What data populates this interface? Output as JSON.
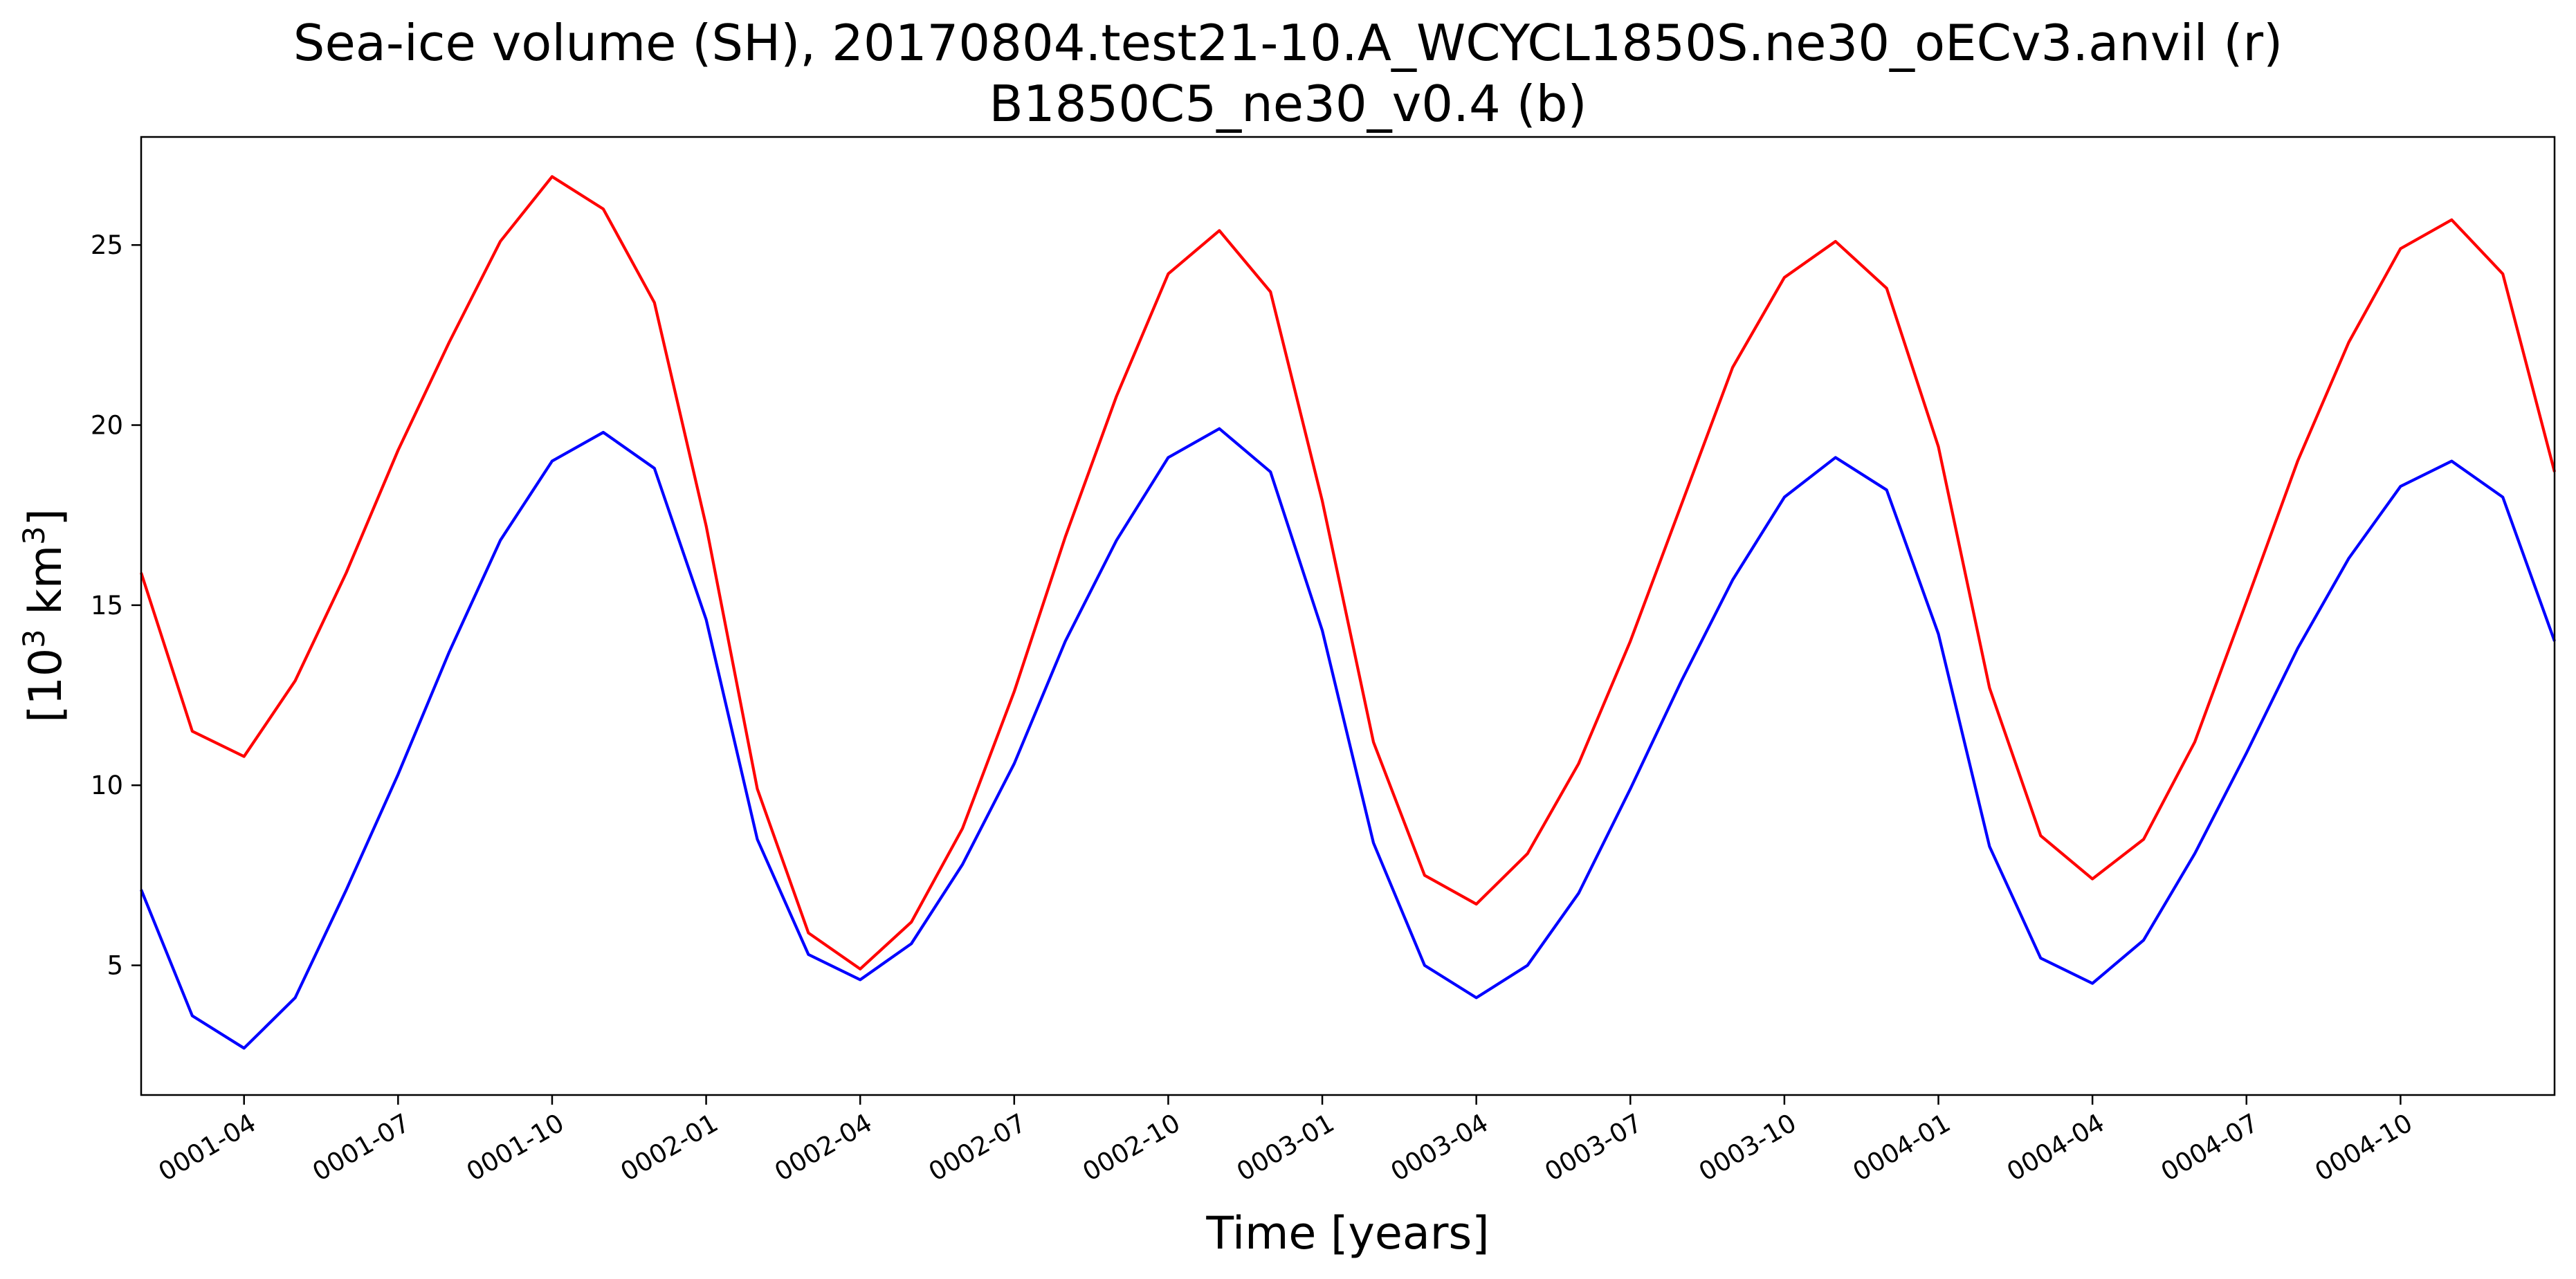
{
  "chart_data": {
    "type": "line",
    "title_line1": "Sea-ice volume (SH), 20170804.test21-10.A_WCYCL1850S.ne30_oECv3.anvil (r)",
    "title_line2": "B1850C5_ne30_v0.4 (b)",
    "xlabel": "Time [years]",
    "ylabel_base": "[10",
    "ylabel_sup1": "3",
    "ylabel_mid": " km",
    "ylabel_sup2": "3",
    "ylabel_end": "]",
    "xlim": [
      0.0,
      3.917
    ],
    "ylim": [
      1.4,
      28.0
    ],
    "y_ticks": [
      5,
      10,
      15,
      20,
      25
    ],
    "x_ticks": [
      {
        "label": "0001-04",
        "value": 0.167
      },
      {
        "label": "0001-07",
        "value": 0.417
      },
      {
        "label": "0001-10",
        "value": 0.667
      },
      {
        "label": "0002-01",
        "value": 0.917
      },
      {
        "label": "0002-04",
        "value": 1.167
      },
      {
        "label": "0002-07",
        "value": 1.417
      },
      {
        "label": "0002-10",
        "value": 1.667
      },
      {
        "label": "0003-01",
        "value": 1.917
      },
      {
        "label": "0003-04",
        "value": 2.167
      },
      {
        "label": "0003-07",
        "value": 2.417
      },
      {
        "label": "0003-10",
        "value": 2.667
      },
      {
        "label": "0004-01",
        "value": 2.917
      },
      {
        "label": "0004-04",
        "value": 3.167
      },
      {
        "label": "0004-07",
        "value": 3.417
      },
      {
        "label": "0004-10",
        "value": 3.667
      }
    ],
    "grid": false,
    "series": [
      {
        "color": "#ff0000",
        "x": [
          0.0,
          0.083,
          0.167,
          0.25,
          0.333,
          0.417,
          0.5,
          0.583,
          0.667,
          0.75,
          0.833,
          0.917,
          1.0,
          1.083,
          1.167,
          1.25,
          1.333,
          1.417,
          1.5,
          1.583,
          1.667,
          1.75,
          1.833,
          1.917,
          2.0,
          2.083,
          2.167,
          2.25,
          2.333,
          2.417,
          2.5,
          2.583,
          2.667,
          2.75,
          2.833,
          2.917,
          3.0,
          3.083,
          3.167,
          3.25,
          3.333,
          3.417,
          3.5,
          3.583,
          3.667,
          3.75,
          3.833,
          3.917
        ],
        "values": [
          15.9,
          11.5,
          10.8,
          12.9,
          15.9,
          19.3,
          22.3,
          25.1,
          26.9,
          26.0,
          23.4,
          17.2,
          9.9,
          5.9,
          4.9,
          6.2,
          8.8,
          12.6,
          16.9,
          20.8,
          24.2,
          25.4,
          23.7,
          17.9,
          11.2,
          7.5,
          6.7,
          8.1,
          10.6,
          14.0,
          17.8,
          21.6,
          24.1,
          25.1,
          23.8,
          19.4,
          12.7,
          8.6,
          7.4,
          8.5,
          11.2,
          15.1,
          19.0,
          22.3,
          24.9,
          25.7,
          24.2,
          18.7
        ]
      },
      {
        "color": "#0000ff",
        "x": [
          0.0,
          0.083,
          0.167,
          0.25,
          0.333,
          0.417,
          0.5,
          0.583,
          0.667,
          0.75,
          0.833,
          0.917,
          1.0,
          1.083,
          1.167,
          1.25,
          1.333,
          1.417,
          1.5,
          1.583,
          1.667,
          1.75,
          1.833,
          1.917,
          2.0,
          2.083,
          2.167,
          2.25,
          2.333,
          2.417,
          2.5,
          2.583,
          2.667,
          2.75,
          2.833,
          2.917,
          3.0,
          3.083,
          3.167,
          3.25,
          3.333,
          3.417,
          3.5,
          3.583,
          3.667,
          3.75,
          3.833,
          3.917
        ],
        "values": [
          7.1,
          3.6,
          2.7,
          4.1,
          7.1,
          10.3,
          13.7,
          16.8,
          19.0,
          19.8,
          18.8,
          14.6,
          8.5,
          5.3,
          4.6,
          5.6,
          7.8,
          10.6,
          14.0,
          16.8,
          19.1,
          19.9,
          18.7,
          14.3,
          8.4,
          5.0,
          4.1,
          5.0,
          7.0,
          9.9,
          12.9,
          15.7,
          18.0,
          19.1,
          18.2,
          14.2,
          8.3,
          5.2,
          4.5,
          5.7,
          8.1,
          10.9,
          13.8,
          16.3,
          18.3,
          19.0,
          18.0,
          14.0
        ]
      }
    ]
  }
}
